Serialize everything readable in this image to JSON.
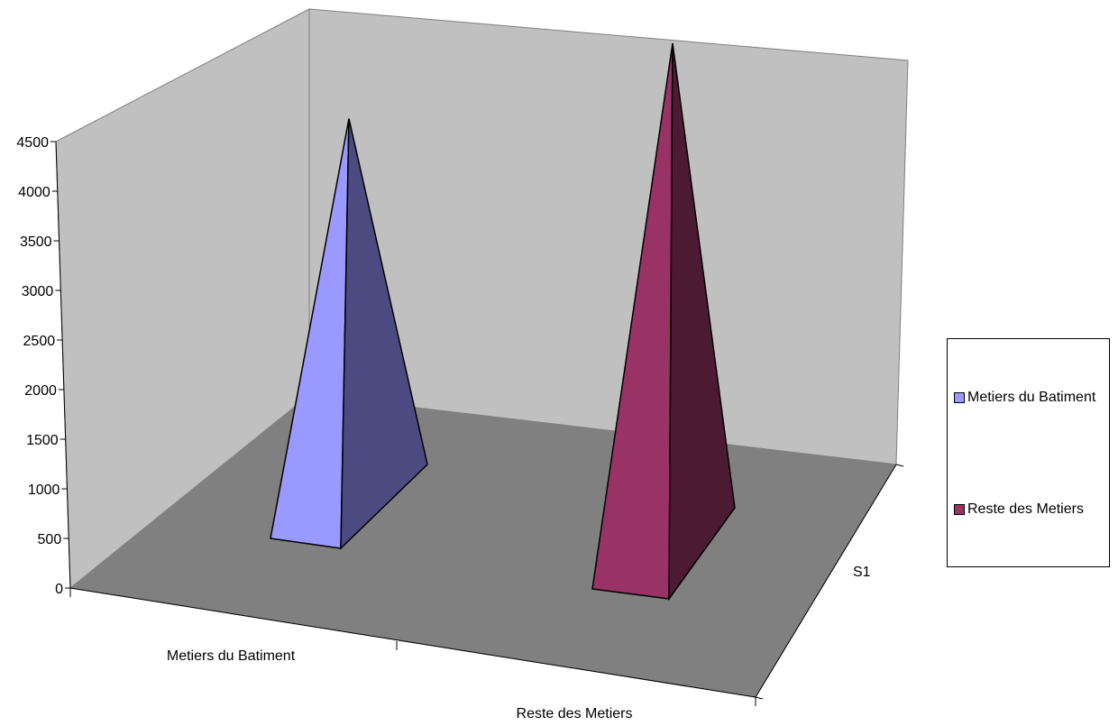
{
  "chart_data": {
    "type": "bar",
    "style": "3d-pyramid",
    "categories": [
      "Metiers du Batiment",
      "Reste des Metiers"
    ],
    "series_axis_label": "S1",
    "series": [
      {
        "name": "Metiers du Batiment",
        "values": [
          4000,
          null
        ],
        "color": "#9999ff",
        "shade": "#4b4b81"
      },
      {
        "name": "Reste des Metiers",
        "values": [
          null,
          4400
        ],
        "color": "#993366",
        "shade": "#4d1a33"
      }
    ],
    "y_ticks": [
      "0",
      "500",
      "1000",
      "1500",
      "2000",
      "2500",
      "3000",
      "3500",
      "4000",
      "4500"
    ],
    "ylim": [
      0,
      4500
    ],
    "grid": false,
    "legend_position": "right",
    "colors": {
      "back_wall": "#c0c0c0",
      "floor": "#808080"
    }
  }
}
